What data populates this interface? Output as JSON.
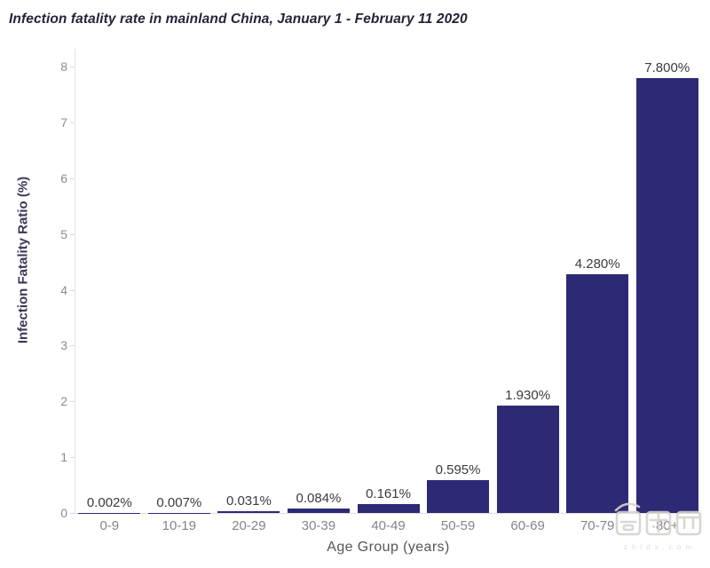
{
  "title": "Infection fatality rate in mainland China, January 1 - February 11 2020",
  "watermark": {
    "logo_text": "智东西",
    "domain": "zhidx.com"
  },
  "chart_data": {
    "type": "bar",
    "title": "Infection fatality rate in mainland China, January 1 - February 11 2020",
    "categories": [
      "0-9",
      "10-19",
      "20-29",
      "30-39",
      "40-49",
      "50-59",
      "60-69",
      "70-79",
      "80+"
    ],
    "values": [
      0.002,
      0.007,
      0.031,
      0.084,
      0.161,
      0.595,
      1.93,
      4.28,
      7.8
    ],
    "bar_labels": [
      "0.002%",
      "0.007%",
      "0.031%",
      "0.084%",
      "0.161%",
      "0.595%",
      "1.930%",
      "4.280%",
      "7.800%"
    ],
    "xlabel": "Age Group (years)",
    "ylabel": "Infection Fatality Ratio (%)",
    "ylim": [
      0,
      8
    ],
    "yticks": [
      0,
      1,
      2,
      3,
      4,
      5,
      6,
      7,
      8
    ],
    "grid": false,
    "legend": "none",
    "bar_color": "#2c2a75"
  },
  "colors": {
    "bar": "#2c2a75",
    "title_text": "#262338",
    "y_axis_title_text": "#3a3856",
    "x_axis_title_text": "#55555e",
    "tick_label_text": "#8b8b92",
    "category_label_text": "#84848c",
    "data_label_text": "#3a3a42",
    "axis_line": "#dededf",
    "watermark": "#d6d2cd"
  }
}
